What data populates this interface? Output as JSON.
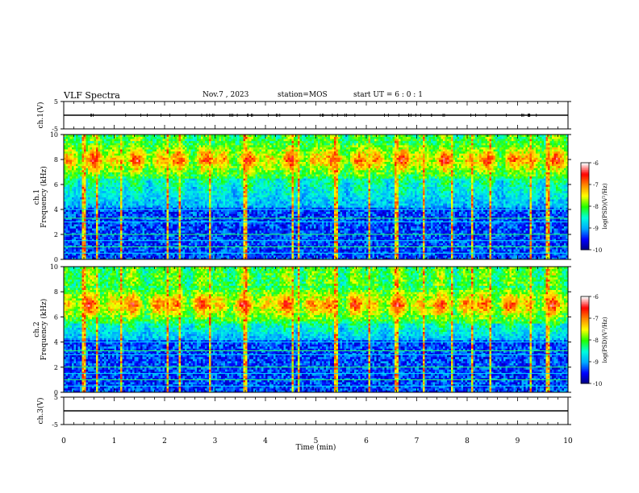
{
  "header": {
    "title": "VLF Spectra",
    "date": "Nov.7 , 2023",
    "station": "station=MOS",
    "start": "start UT = 6 : 0 : 1"
  },
  "chart_data": {
    "type": "heatmap",
    "title": "VLF Spectra",
    "xlabel": "Time (min)",
    "xlim": [
      0,
      10
    ],
    "xticks": [
      0,
      1,
      2,
      3,
      4,
      5,
      6,
      7,
      8,
      9,
      10
    ],
    "panels": [
      {
        "name": "ch.1(V)",
        "type": "line",
        "ylabel": "ch.1(V)",
        "ylim": [
          -5,
          5
        ],
        "yticks": [
          5,
          -5
        ],
        "approx_level": 0
      },
      {
        "name": "ch.1 spectrogram",
        "type": "heatmap",
        "ylabel_line1": "ch.1",
        "ylabel_line2": "Frequency (kHz)",
        "ylim": [
          0,
          10
        ],
        "yticks": [
          0,
          2,
          4,
          6,
          8,
          10
        ],
        "intense_band_khz": [
          6.5,
          9.5
        ],
        "steady_lines_khz": [
          0.5,
          1.0,
          1.5,
          2.0,
          3.0,
          3.3,
          4.0
        ]
      },
      {
        "name": "ch.2 spectrogram",
        "type": "heatmap",
        "ylabel_line1": "ch.2",
        "ylabel_line2": "Frequency (kHz)",
        "ylim": [
          0,
          10
        ],
        "yticks": [
          0,
          2,
          4,
          6,
          8,
          10
        ],
        "intense_band_khz": [
          5.5,
          8.5
        ],
        "steady_lines_khz": [
          0.5,
          1.0,
          1.5,
          2.0,
          3.0,
          3.3,
          4.0
        ]
      },
      {
        "name": "ch.3(V)",
        "type": "line",
        "ylabel": "ch.3(V)",
        "ylim": [
          -5,
          5
        ],
        "yticks": [
          5,
          -5
        ],
        "approx_level": 0
      }
    ],
    "colorbar": {
      "label": "log(PSD)(V²/Hz)",
      "ticks": [
        -6,
        -7,
        -8,
        -9,
        -10
      ],
      "range": [
        -10,
        -6
      ],
      "colors": [
        "#00007a",
        "#0000ff",
        "#00aaff",
        "#00ffdd",
        "#22ff00",
        "#ffff00",
        "#ff8800",
        "#ff0000",
        "#ffffff"
      ]
    },
    "spherics_min": [
      0.4,
      0.65,
      1.15,
      2.05,
      2.3,
      2.9,
      3.6,
      4.55,
      4.65,
      5.4,
      6.05,
      6.6,
      7.15,
      7.7,
      8.1,
      8.45,
      9.25,
      9.6
    ]
  }
}
